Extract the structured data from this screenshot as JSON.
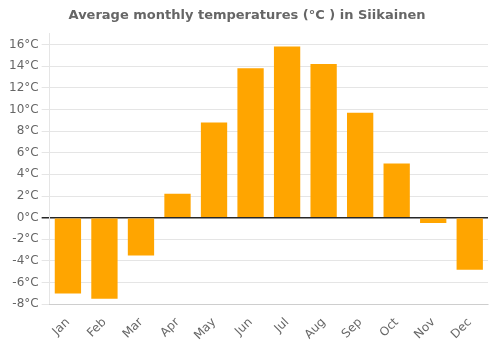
{
  "chart_data": {
    "type": "bar",
    "title": "Average monthly temperatures (°C ) in Siikainen",
    "categories": [
      "Jan",
      "Feb",
      "Mar",
      "Apr",
      "May",
      "Jun",
      "Jul",
      "Aug",
      "Sep",
      "Oct",
      "Nov",
      "Dec"
    ],
    "values": [
      -7.0,
      -7.5,
      -3.5,
      2.2,
      8.8,
      13.8,
      15.8,
      14.2,
      9.7,
      5.0,
      -0.5,
      -4.8
    ],
    "color": "#FFA500",
    "ylim": [
      -8,
      17
    ],
    "yticks": [
      {
        "value": -8,
        "label": "-8°C"
      },
      {
        "value": -6,
        "label": "-6°C"
      },
      {
        "value": -4,
        "label": "-4°C"
      },
      {
        "value": -2,
        "label": "-2°C"
      },
      {
        "value": 0,
        "label": "0°C"
      },
      {
        "value": 2,
        "label": "2°C"
      },
      {
        "value": 4,
        "label": "4°C"
      },
      {
        "value": 6,
        "label": "6°C"
      },
      {
        "value": 8,
        "label": "8°C"
      },
      {
        "value": 10,
        "label": "10°C"
      },
      {
        "value": 12,
        "label": "12°C"
      },
      {
        "value": 14,
        "label": "14°C"
      },
      {
        "value": 16,
        "label": "16°C"
      }
    ],
    "grid": true
  }
}
